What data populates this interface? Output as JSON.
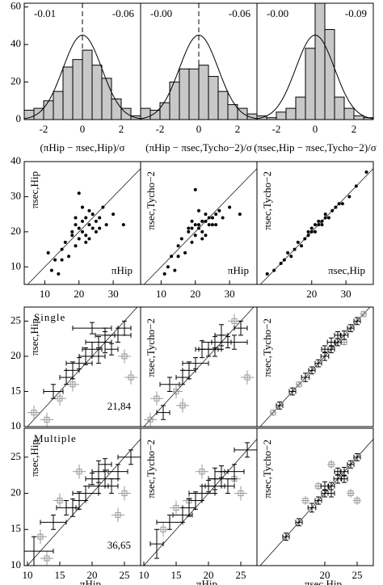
{
  "chart_data": [
    {
      "type": "histogram",
      "bins": [
        -3,
        -2.5,
        -2,
        -1.5,
        -1,
        -0.5,
        0,
        0.5,
        1,
        1.5,
        2,
        2.5,
        3
      ],
      "counts": [
        5,
        6,
        10,
        15,
        28,
        32,
        37,
        29,
        22,
        11,
        6,
        2
      ],
      "color": "#c8c8c8",
      "gaussian": {
        "center": 0,
        "sigma": 1,
        "amplitude": 45
      },
      "refline": 0,
      "left_note": "-0.01",
      "right_note": "-0.06",
      "xlabel": "(πHip − πsec,Hip)/σ",
      "xlim": [
        -3,
        3
      ],
      "ylim": [
        0,
        62
      ],
      "xticks": [
        -2,
        0,
        2
      ],
      "yticks": [
        0,
        20,
        40,
        60
      ]
    },
    {
      "type": "histogram",
      "bins": [
        -3,
        -2.5,
        -2,
        -1.5,
        -1,
        -0.5,
        0,
        0.5,
        1,
        1.5,
        2,
        2.5,
        3
      ],
      "counts": [
        6,
        5,
        9,
        20,
        27,
        27,
        29,
        23,
        15,
        8,
        6,
        3
      ],
      "color": "#c8c8c8",
      "gaussian": {
        "center": 0,
        "sigma": 1,
        "amplitude": 45
      },
      "refline": 0,
      "left_note": "-0.00",
      "right_note": "-0.06",
      "xlabel": "(πHip − πsec,Tycho−2)/σ",
      "xlim": [
        -3,
        3
      ],
      "ylim": [
        0,
        62
      ],
      "xticks": [
        -2,
        0,
        2
      ]
    },
    {
      "type": "histogram",
      "bins": [
        -3,
        -2.5,
        -2,
        -1.5,
        -1,
        -0.5,
        0,
        0.5,
        1,
        1.5,
        2,
        2.5,
        3
      ],
      "counts": [
        2,
        1,
        4,
        6,
        12,
        38,
        62,
        48,
        12,
        6,
        2,
        1
      ],
      "color": "#c8c8c8",
      "gaussian": {
        "center": 0,
        "sigma": 1,
        "amplitude": 45
      },
      "refline": 0,
      "left_note": "-0.00",
      "right_note": "-0.09",
      "xlabel": "(πsec,Hip − πsec,Tycho−2)/σ",
      "xlim": [
        -3,
        3
      ],
      "ylim": [
        0,
        62
      ],
      "xticks": [
        -2,
        0,
        2
      ]
    },
    {
      "type": "scatter",
      "x": [
        12,
        13,
        14,
        15,
        16,
        17,
        18,
        19,
        19,
        20,
        20,
        21,
        21,
        22,
        22,
        23,
        23,
        24,
        24,
        25,
        26,
        27,
        28,
        20,
        18,
        22,
        25,
        15,
        11,
        33,
        30,
        21,
        23,
        19,
        26
      ],
      "y": [
        9,
        12,
        8,
        15,
        17,
        13,
        19,
        22,
        16,
        21,
        18,
        23,
        20,
        24,
        19,
        22,
        26,
        21,
        25,
        23,
        24,
        27,
        22,
        31,
        20,
        17,
        20,
        12,
        14,
        22,
        25,
        27,
        18,
        24,
        21
      ],
      "diagonal": true,
      "xlabel": "πHip",
      "ylabel": "πsec,Hip",
      "xlim": [
        4,
        38
      ],
      "ylim": [
        5,
        40
      ],
      "xticks": [
        10,
        20,
        30
      ],
      "yticks": [
        10,
        20,
        30,
        40
      ]
    },
    {
      "type": "scatter",
      "x": [
        12,
        13,
        14,
        15,
        16,
        17,
        18,
        19,
        19,
        20,
        20,
        21,
        21,
        22,
        22,
        23,
        23,
        24,
        24,
        25,
        26,
        27,
        28,
        20,
        18,
        22,
        25,
        15,
        11,
        33,
        30,
        21,
        23,
        19,
        26
      ],
      "y": [
        10,
        13,
        9,
        16,
        18,
        14,
        20,
        21,
        17,
        22,
        19,
        22,
        21,
        23,
        20,
        23,
        25,
        22,
        24,
        24,
        25,
        26,
        24,
        32,
        21,
        18,
        22,
        13,
        8,
        25,
        27,
        26,
        19,
        23,
        22
      ],
      "diagonal": true,
      "xlabel": "πHip",
      "ylabel": "πsec,Tycho−2",
      "xlim": [
        4,
        38
      ],
      "ylim": [
        5,
        40
      ],
      "xticks": [
        10,
        20,
        30
      ]
    },
    {
      "type": "scatter",
      "x": [
        7,
        9,
        11,
        12,
        13,
        14,
        15,
        16,
        17,
        18,
        19,
        19,
        20,
        20,
        21,
        21,
        22,
        22,
        23,
        23,
        24,
        24,
        25,
        26,
        27,
        28,
        29,
        31,
        33,
        36
      ],
      "y": [
        8,
        9,
        11,
        12,
        14,
        13,
        15,
        17,
        16,
        18,
        19,
        20,
        20,
        21,
        20,
        22,
        22,
        23,
        23,
        22,
        24,
        25,
        24,
        26,
        27,
        28,
        28,
        30,
        33,
        37
      ],
      "diagonal": true,
      "xlabel": "πsec,Hip",
      "ylabel": "πsec,Tycho−2",
      "xlim": [
        4,
        38
      ],
      "ylim": [
        5,
        40
      ],
      "xticks": [
        20,
        30
      ]
    },
    {
      "type": "errorbar",
      "x": [
        14,
        16,
        18,
        19,
        20,
        21,
        21,
        22,
        22,
        23,
        24,
        25,
        20,
        17
      ],
      "y": [
        15,
        17,
        19,
        20,
        21,
        22,
        20,
        22,
        23,
        21,
        23,
        24,
        24,
        18
      ],
      "xerr": [
        1.5,
        1,
        2,
        1,
        1.5,
        2,
        1,
        1,
        1.5,
        1,
        2,
        1,
        3,
        1
      ],
      "yerr": [
        1,
        1,
        0.8,
        1.2,
        1,
        0.8,
        1,
        1.5,
        1,
        0.8,
        1,
        1,
        0.8,
        1.2
      ],
      "gray_x": [
        11,
        13,
        15,
        17,
        26,
        25
      ],
      "gray_y": [
        12,
        11,
        14,
        16,
        17,
        20
      ],
      "gray_err": [
        1,
        1,
        1,
        1,
        1,
        1
      ],
      "diagonal": true,
      "note": "Single",
      "count_note": "21,84",
      "ylabel": "πsec,Hip",
      "xlim": [
        9.5,
        27.5
      ],
      "ylim": [
        10,
        27
      ],
      "yticks": [
        10,
        15,
        20,
        25
      ]
    },
    {
      "type": "errorbar",
      "x": [
        14,
        16,
        18,
        19,
        20,
        21,
        21,
        22,
        22,
        23,
        24,
        25,
        17,
        13
      ],
      "y": [
        16,
        17,
        19,
        21,
        21,
        22,
        21,
        23,
        22,
        22,
        22,
        24,
        18,
        12
      ],
      "xerr": [
        1.5,
        1,
        2,
        1,
        1.5,
        2,
        1,
        1,
        1.5,
        1,
        2,
        1,
        1,
        1
      ],
      "yerr": [
        1,
        1,
        0.8,
        1.2,
        1,
        0.8,
        1,
        1.5,
        1,
        0.8,
        1,
        1,
        1.2,
        1
      ],
      "gray_x": [
        11,
        12,
        15,
        16,
        26,
        24
      ],
      "gray_y": [
        11,
        14,
        15,
        13,
        17,
        25
      ],
      "gray_err": [
        1,
        1,
        1,
        1,
        1,
        1
      ],
      "diagonal": true,
      "ylabel": "πsec,Tycho−2",
      "xlim": [
        9.5,
        27.5
      ],
      "ylim": [
        10,
        27
      ]
    },
    {
      "type": "errorbar",
      "x": [
        13,
        15,
        17,
        18,
        19,
        20,
        20,
        21,
        21,
        22,
        22,
        23,
        24,
        25
      ],
      "y": [
        13,
        15,
        17,
        18,
        19,
        20,
        21,
        21,
        22,
        22,
        23,
        23,
        24,
        25
      ],
      "xerr": [
        0.5,
        0.5,
        0.6,
        0.5,
        0.5,
        0.6,
        0.5,
        0.5,
        0.6,
        0.5,
        0.5,
        0.6,
        0.5,
        0.5
      ],
      "yerr": [
        0.5,
        0.5,
        0.6,
        0.5,
        0.5,
        0.6,
        0.5,
        0.5,
        0.6,
        0.5,
        0.5,
        0.6,
        0.5,
        0.5
      ],
      "gray_x": [
        12,
        26,
        16,
        23
      ],
      "gray_y": [
        12,
        26,
        16,
        22
      ],
      "gray_err": [
        0.5,
        0.5,
        0.5,
        0.5
      ],
      "diagonal": true,
      "ylabel": "πsec,Tycho−2",
      "xlim": [
        9.5,
        27.5
      ],
      "ylim": [
        10,
        27
      ]
    },
    {
      "type": "errorbar",
      "x": [
        11,
        14,
        16,
        18,
        19,
        20,
        21,
        21,
        22,
        22,
        23,
        24,
        26,
        17
      ],
      "y": [
        12,
        16,
        18,
        19,
        20,
        22,
        21,
        23,
        22,
        24,
        21,
        23,
        25,
        18
      ],
      "xerr": [
        3,
        2,
        1.5,
        1,
        2,
        1,
        1.5,
        1,
        2,
        1,
        1,
        1.5,
        2,
        1
      ],
      "yerr": [
        2,
        1,
        1,
        1.2,
        1,
        0.8,
        1,
        1.5,
        1,
        0.8,
        1,
        1,
        1,
        1.2
      ],
      "gray_x": [
        12,
        15,
        18,
        25,
        24,
        13
      ],
      "gray_y": [
        14,
        19,
        23,
        20,
        17,
        11
      ],
      "gray_err": [
        1,
        1,
        1,
        1,
        1,
        1
      ],
      "diagonal": true,
      "note": "Multiple",
      "count_note": "36,65",
      "xlabel": "πHip",
      "ylabel": "πsec,Hip",
      "xlim": [
        9.5,
        27.5
      ],
      "ylim": [
        10,
        29
      ],
      "xticks": [
        10,
        15,
        20,
        25
      ],
      "yticks": [
        10,
        15,
        20,
        25
      ]
    },
    {
      "type": "errorbar",
      "x": [
        12,
        14,
        16,
        18,
        19,
        20,
        21,
        21,
        22,
        22,
        23,
        24,
        26,
        17
      ],
      "y": [
        13,
        16,
        17,
        19,
        20,
        21,
        21,
        22,
        22,
        23,
        21,
        23,
        26,
        18
      ],
      "xerr": [
        1,
        2,
        1.5,
        1,
        2,
        1,
        1.5,
        1,
        2,
        1,
        1,
        1.5,
        2,
        1
      ],
      "yerr": [
        2,
        1,
        1,
        1.2,
        1,
        0.8,
        1,
        1.5,
        1,
        0.8,
        1,
        1,
        1,
        1.2
      ],
      "gray_x": [
        13,
        15,
        19,
        25,
        24,
        17
      ],
      "gray_y": [
        15,
        18,
        23,
        20,
        22,
        19
      ],
      "gray_err": [
        1,
        1,
        1,
        1,
        1,
        1
      ],
      "diagonal": true,
      "xlabel": "πHip",
      "ylabel": "πsec,Tycho−2",
      "xlim": [
        9.5,
        27.5
      ],
      "ylim": [
        10,
        29
      ],
      "xticks": [
        10,
        15,
        20,
        25
      ]
    },
    {
      "type": "errorbar",
      "x": [
        14,
        16,
        18,
        19,
        20,
        20,
        21,
        21,
        22,
        22,
        23,
        23,
        24,
        25
      ],
      "y": [
        14,
        16,
        18,
        19,
        20,
        21,
        20,
        21,
        22,
        23,
        22,
        23,
        24,
        25
      ],
      "xerr": [
        0.5,
        0.5,
        0.6,
        0.5,
        0.5,
        0.6,
        0.5,
        0.5,
        0.6,
        0.5,
        0.5,
        0.6,
        0.5,
        0.5
      ],
      "yerr": [
        0.5,
        0.5,
        0.6,
        0.5,
        0.5,
        0.6,
        0.5,
        0.5,
        0.6,
        0.5,
        0.5,
        0.6,
        0.5,
        0.5
      ],
      "gray_x": [
        17,
        19,
        25,
        24,
        21
      ],
      "gray_y": [
        19,
        21,
        19,
        20,
        24
      ],
      "gray_err": [
        0.6,
        0.6,
        0.6,
        0.6,
        0.6
      ],
      "diagonal": true,
      "xlabel": "πsec,Hip",
      "ylabel": "πsec,Tycho−2",
      "xlim": [
        9.5,
        27.5
      ],
      "ylim": [
        10,
        29
      ],
      "xticks": [
        20,
        25
      ]
    }
  ]
}
